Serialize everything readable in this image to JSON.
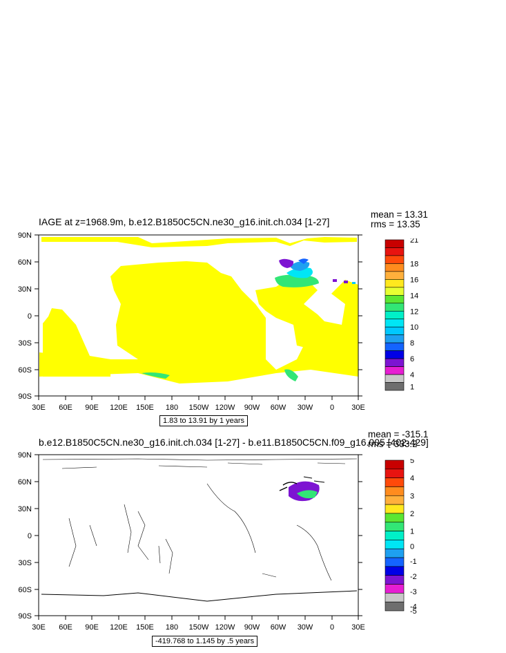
{
  "panels": [
    {
      "title": "IAGE at z=1968.9m, b.e12.B1850C5CN.ne30_g16.init.ch.034 [1-27]",
      "mean": "mean = 13.31",
      "rms": "rms = 13.35",
      "range": "1.83 to 13.91 by 1 years",
      "lat_ticks": [
        "90N",
        "60N",
        "30N",
        "0",
        "30S",
        "60S",
        "90S"
      ],
      "lon_ticks": [
        "30E",
        "60E",
        "90E",
        "120E",
        "150E",
        "180",
        "150W",
        "120W",
        "90W",
        "60W",
        "30W",
        "0",
        "30E"
      ],
      "colorbar_labels": [
        "21",
        "18",
        "16",
        "14",
        "12",
        "10",
        "8",
        "6",
        "4",
        "1"
      ],
      "colorbar_colors": [
        "#c80000",
        "#e81410",
        "#ff4a0a",
        "#ff8c1e",
        "#ffb03c",
        "#ffe81e",
        "#e6ff32",
        "#5ae632",
        "#32e676",
        "#00f0c8",
        "#00e6f5",
        "#00c8ff",
        "#1ea0f0",
        "#1464ff",
        "#0000e6",
        "#7d14d2",
        "#e61ed2",
        "#c8c8c8",
        "#6e6e6e"
      ]
    },
    {
      "title": "b.e12.B1850C5CN.ne30_g16.init.ch.034 [1-27] - b.e11.B1850C5CN.f09_g16.005 [402-429]",
      "mean": "mean = -315.1",
      "rms": "rms = 333.2",
      "range": "-419.768 to 1.145 by .5 years",
      "lat_ticks": [
        "90N",
        "60N",
        "30N",
        "0",
        "30S",
        "60S",
        "90S"
      ],
      "lon_ticks": [
        "30E",
        "60E",
        "90E",
        "120E",
        "150E",
        "180",
        "150W",
        "120W",
        "90W",
        "60W",
        "30W",
        "0",
        "30E"
      ],
      "colorbar_labels": [
        "5",
        "4",
        "3",
        "2",
        "1",
        "0",
        "-1",
        "-2",
        "-3",
        "-4",
        "-5"
      ],
      "colorbar_colors": [
        "#c80000",
        "#e81410",
        "#ff4a0a",
        "#ff8c1e",
        "#ffb03c",
        "#ffe81e",
        "#5ae632",
        "#32e676",
        "#00f0c8",
        "#00e6f5",
        "#1ea0f0",
        "#1464ff",
        "#0000e6",
        "#7d14d2",
        "#e61ed2",
        "#c8c8c8",
        "#6e6e6e"
      ]
    }
  ],
  "chart_data": [
    {
      "type": "heatmap",
      "title": "IAGE at z=1968.9m, b.e12.B1850C5CN.ne30_g16.init.ch.034 [1-27]",
      "xlabel": "",
      "ylabel": "",
      "x_range": [
        "30E",
        "30E"
      ],
      "y_range": [
        "90S",
        "90N"
      ],
      "colorbar": {
        "min": 1,
        "max": 21
      },
      "stats": {
        "mean": 13.31,
        "rms": 13.35
      },
      "contour_info": "1.83 to 13.91 by 1 years",
      "field_description": "mostly uniform value ~14 over ocean, lower values in North Atlantic and Southern Ocean patches"
    },
    {
      "type": "heatmap",
      "title": "b.e12.B1850C5CN.ne30_g16.init.ch.034 [1-27] - b.e11.B1850C5CN.f09_g16.005 [402-429]",
      "xlabel": "",
      "ylabel": "",
      "x_range": [
        "30E",
        "30E"
      ],
      "y_range": [
        "90S",
        "90N"
      ],
      "colorbar": {
        "min": -5,
        "max": 5
      },
      "stats": {
        "mean": -315.1,
        "rms": 333.2
      },
      "contour_info": "-419.768 to 1.145 by .5 years"
    }
  ]
}
